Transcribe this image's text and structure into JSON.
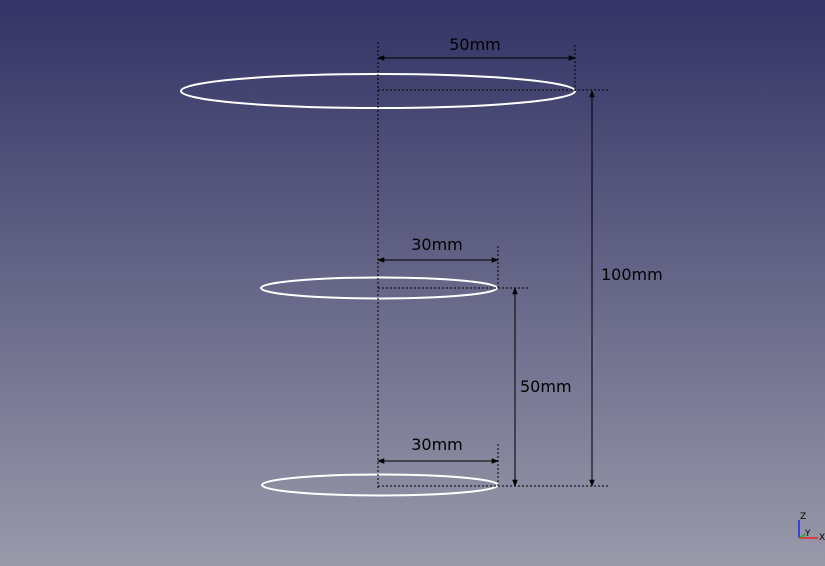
{
  "view3d": {
    "background_top": "#333366",
    "background_bottom": "#9999aa",
    "circle_color": "#ffffff",
    "dimension_color": "#000000",
    "dimensions": {
      "top_radius": "50mm",
      "middle_radius": "30mm",
      "bottom_radius": "30mm",
      "total_height": "100mm",
      "lower_height": "50mm"
    },
    "axis": {
      "z_label": "Z",
      "y_label": "Y",
      "x_label": "X",
      "z_color": "#2222ee",
      "x_color": "#ee2222",
      "y_color": "#22aa22"
    }
  }
}
